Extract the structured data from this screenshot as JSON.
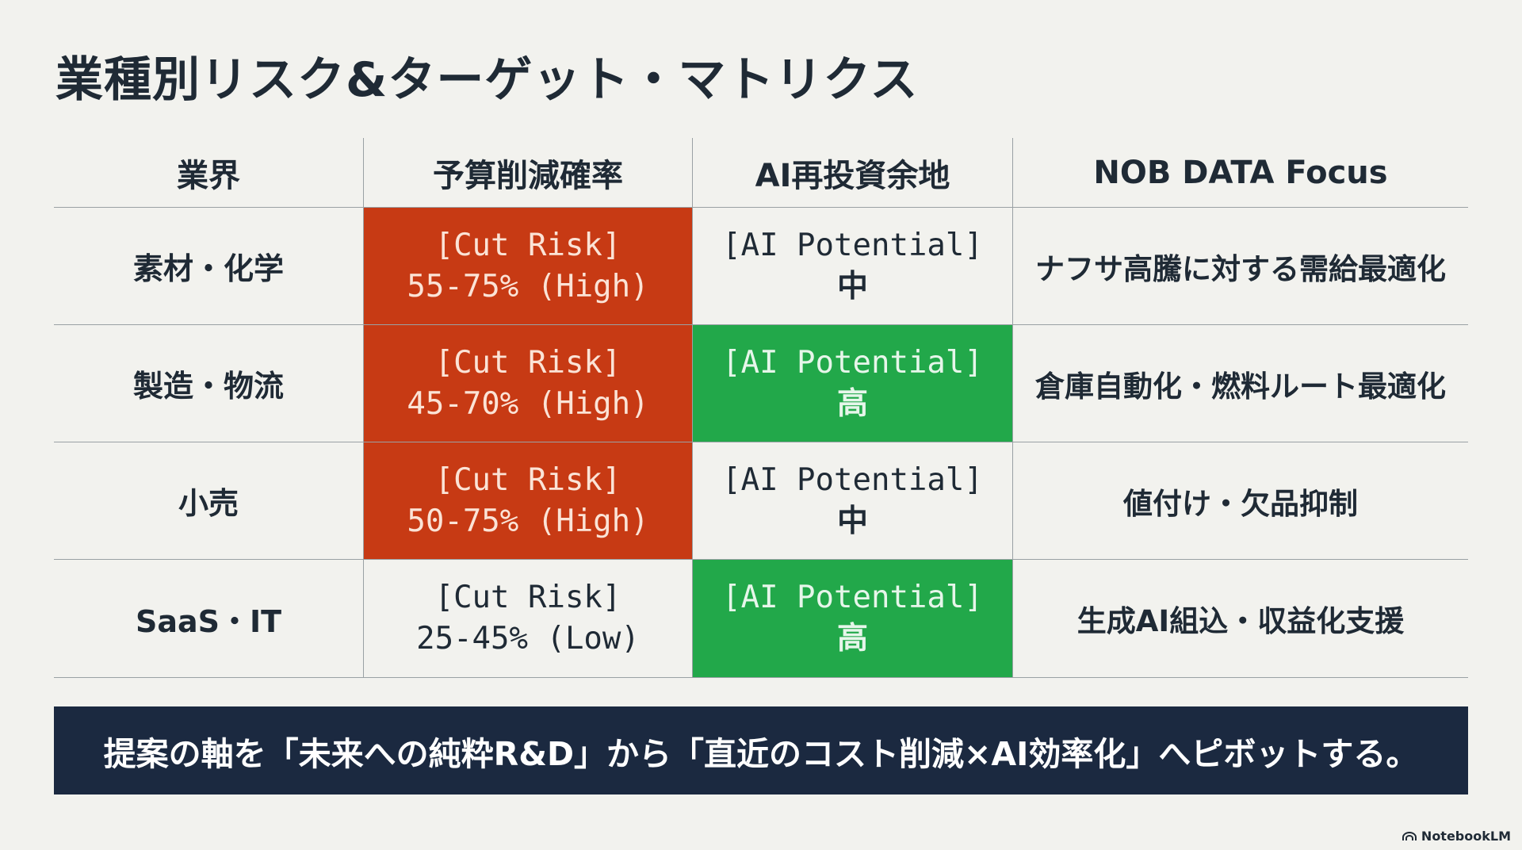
{
  "title": "業種別リスク&ターゲット・マトリクス",
  "table": {
    "headers": [
      "業界",
      "予算削減確率",
      "AI再投資余地",
      "NOB DATA Focus"
    ],
    "rows": [
      {
        "industry": "素材・化学",
        "cut_risk_label": "[Cut Risk]",
        "cut_risk_value": "55-75% (High)",
        "ai_label": "[AI Potential]",
        "ai_value": "中",
        "focus": "ナフサ高騰に対する需給最適化"
      },
      {
        "industry": "製造・物流",
        "cut_risk_label": "[Cut Risk]",
        "cut_risk_value": "45-70% (High)",
        "ai_label": "[AI Potential]",
        "ai_value": "高",
        "focus": "倉庫自動化・燃料ルート最適化"
      },
      {
        "industry": "小売",
        "cut_risk_label": "[Cut Risk]",
        "cut_risk_value": "50-75% (High)",
        "ai_label": "[AI Potential]",
        "ai_value": "中",
        "focus": "値付け・欠品抑制"
      },
      {
        "industry": "SaaS・IT",
        "cut_risk_label": "[Cut Risk]",
        "cut_risk_value": "25-45% (Low)",
        "ai_label": "[AI Potential]",
        "ai_value": "高",
        "focus": "生成AI組込・収益化支援"
      }
    ]
  },
  "banner": {
    "text": "提案の軸を「未来への純粋R&D」から「直近のコスト削減×AI効率化」へピボットする。"
  },
  "brand": {
    "name": "NotebookLM",
    "icon": "notebooklm-logo-icon"
  },
  "colors": {
    "background": "#f2f2ee",
    "high_risk": "#c73a14",
    "high_potential": "#22a84a",
    "banner": "#1b2940",
    "text": "#1f2a35"
  }
}
